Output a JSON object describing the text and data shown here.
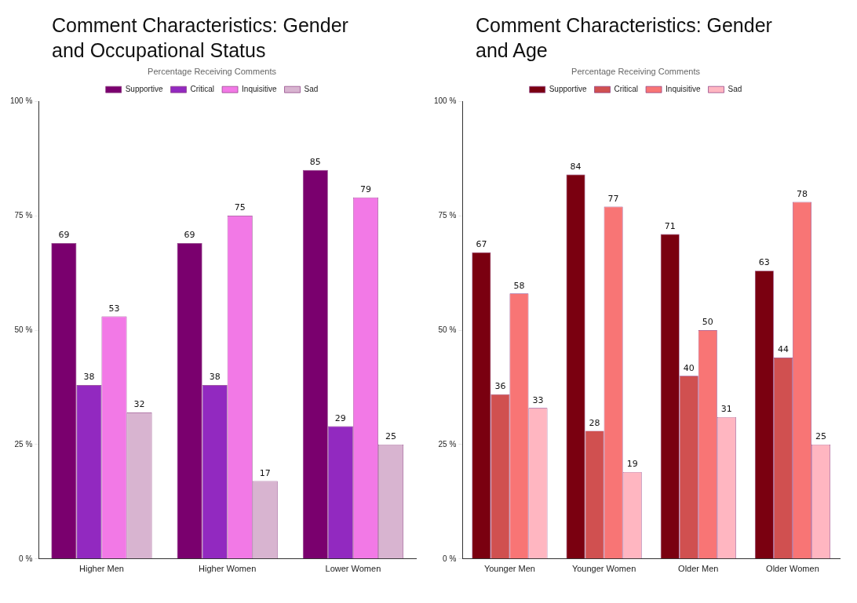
{
  "chart_data": [
    {
      "type": "bar",
      "title": "Comment Characteristics: Gender and Occupational Status",
      "legend_title": "Percentage Receiving Comments",
      "categories": [
        "Higher Men",
        "Higher Women",
        "Lower Women"
      ],
      "series": [
        {
          "name": "Supportive",
          "color": "#7a006e",
          "values": [
            69,
            69,
            85
          ]
        },
        {
          "name": "Critical",
          "color": "#9229c0",
          "values": [
            38,
            38,
            29
          ]
        },
        {
          "name": "Inquisitive",
          "color": "#f279e6",
          "values": [
            53,
            75,
            79
          ]
        },
        {
          "name": "Sad",
          "color": "#d8b4d0",
          "values": [
            32,
            17,
            25
          ]
        }
      ],
      "ylim": [
        0,
        100
      ],
      "yticks": [
        {
          "value": 0,
          "label": "0 %"
        },
        {
          "value": 25,
          "label": "25 %"
        },
        {
          "value": 50,
          "label": "50 %"
        },
        {
          "value": 75,
          "label": "75 %"
        },
        {
          "value": 100,
          "label": "100 %"
        }
      ],
      "grid": false,
      "legend": "top",
      "data_labels": true
    },
    {
      "type": "bar",
      "title": "Comment Characteristics: Gender and Age",
      "legend_title": "Percentage Receiving Comments",
      "categories": [
        "Younger Men",
        "Younger Women",
        "Older Men",
        "Older Women"
      ],
      "series": [
        {
          "name": "Supportive",
          "color": "#7a0010",
          "values": [
            67,
            84,
            71,
            63
          ]
        },
        {
          "name": "Critical",
          "color": "#d05050",
          "values": [
            36,
            28,
            40,
            44
          ]
        },
        {
          "name": "Inquisitive",
          "color": "#f87575",
          "values": [
            58,
            77,
            50,
            78
          ]
        },
        {
          "name": "Sad",
          "color": "#ffb6c1",
          "values": [
            33,
            19,
            31,
            25
          ]
        }
      ],
      "ylim": [
        0,
        100
      ],
      "yticks": [
        {
          "value": 0,
          "label": "0 %"
        },
        {
          "value": 25,
          "label": "25 %"
        },
        {
          "value": 50,
          "label": "50 %"
        },
        {
          "value": 75,
          "label": "75 %"
        },
        {
          "value": 100,
          "label": "100 %"
        }
      ],
      "grid": false,
      "legend": "top",
      "data_labels": true
    }
  ]
}
